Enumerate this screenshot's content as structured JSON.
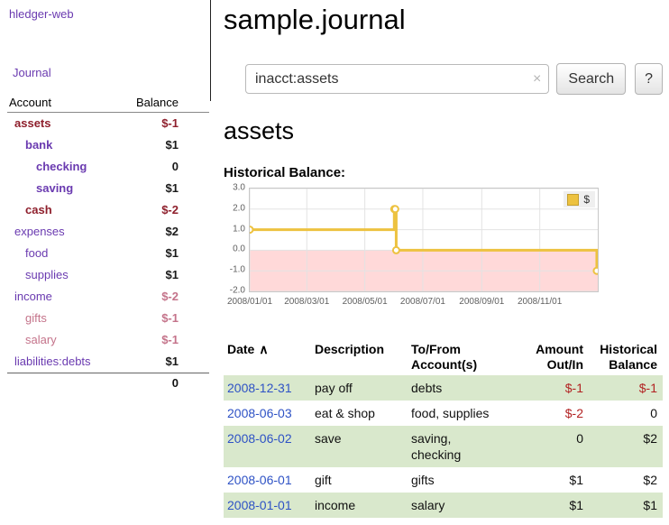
{
  "colors": {
    "link": "#6a3ab0",
    "negative": "#8e1f2c",
    "negative_dim": "#c4738a",
    "normal": "#1a1a1a",
    "table_negative": "#b22222",
    "date_link": "#2e52c5",
    "row_stripe": "#d9e8cc",
    "grid": "#e3e3e3",
    "series": "#edc240",
    "plot_border": "#c8c8c8",
    "negative_region": "#ffd9d9",
    "axis_label": "#5f5f5f"
  },
  "sidebar": {
    "brand": "hledger-web",
    "journal": "Journal",
    "accounts_table": {
      "header": {
        "account": "Account",
        "balance": "Balance"
      },
      "rows": [
        {
          "name": "assets",
          "depth": 0,
          "balance": "$-1",
          "bold": true,
          "name_color": "negative",
          "balance_color": "negative"
        },
        {
          "name": "bank",
          "depth": 1,
          "balance": "$1",
          "bold": true,
          "name_color": "link",
          "balance_color": "normal"
        },
        {
          "name": "checking",
          "depth": 2,
          "balance": "0",
          "bold": true,
          "name_color": "link",
          "balance_color": "normal"
        },
        {
          "name": "saving",
          "depth": 2,
          "balance": "$1",
          "bold": true,
          "name_color": "link",
          "balance_color": "normal"
        },
        {
          "name": "cash",
          "depth": 1,
          "balance": "$-2",
          "bold": true,
          "name_color": "negative",
          "balance_color": "negative"
        },
        {
          "name": "expenses",
          "depth": 0,
          "balance": "$2",
          "bold": false,
          "name_color": "link",
          "balance_color": "normal"
        },
        {
          "name": "food",
          "depth": 1,
          "balance": "$1",
          "bold": false,
          "name_color": "link",
          "balance_color": "normal"
        },
        {
          "name": "supplies",
          "depth": 1,
          "balance": "$1",
          "bold": false,
          "name_color": "link",
          "balance_color": "normal"
        },
        {
          "name": "income",
          "depth": 0,
          "balance": "$-2",
          "bold": false,
          "name_color": "link",
          "balance_color": "negative_dim"
        },
        {
          "name": "gifts",
          "depth": 1,
          "balance": "$-1",
          "bold": false,
          "name_color": "negative_dim",
          "balance_color": "negative_dim"
        },
        {
          "name": "salary",
          "depth": 1,
          "balance": "$-1",
          "bold": false,
          "name_color": "negative_dim",
          "balance_color": "negative_dim"
        },
        {
          "name": "liabilities:debts",
          "depth": 0,
          "balance": "$1",
          "bold": false,
          "name_color": "link",
          "balance_color": "normal"
        }
      ],
      "total": "0"
    }
  },
  "main": {
    "title": "sample.journal",
    "search": {
      "value": "inacct:assets",
      "clear": "×",
      "submit": "Search",
      "help": "?"
    },
    "account_heading": "assets",
    "chart_title": "Historical Balance:"
  },
  "chart_data": {
    "type": "line",
    "step": true,
    "title": "Historical Balance",
    "xlabel": "",
    "ylabel": "",
    "legend": {
      "label": "$",
      "position": "top-right"
    },
    "xrange": [
      "2008-01-01",
      "2009-01-01"
    ],
    "ylim": [
      -2,
      3
    ],
    "yticks": [
      "3.0",
      "2.0",
      "1.0",
      "0.0",
      "-1.0",
      "-2.0"
    ],
    "xticks": [
      "2008/01/01",
      "2008/03/01",
      "2008/05/01",
      "2008/07/01",
      "2008/09/01",
      "2008/11/01"
    ],
    "series": [
      {
        "name": "$",
        "color": "#edc240",
        "points": [
          [
            "2008-01-01",
            1
          ],
          [
            "2008-06-01",
            2
          ],
          [
            "2008-06-02",
            2
          ],
          [
            "2008-06-03",
            0
          ],
          [
            "2008-12-31",
            -1
          ]
        ]
      }
    ],
    "negative_region_below": 0,
    "grid": true
  },
  "register": {
    "sort_icon": "∧",
    "columns": [
      {
        "lines": [
          "Date"
        ],
        "sort": "asc",
        "align": "left"
      },
      {
        "lines": [
          "Description"
        ],
        "align": "left"
      },
      {
        "lines": [
          "To/From",
          "Account(s)"
        ],
        "align": "left"
      },
      {
        "lines": [
          "Amount",
          "Out/In"
        ],
        "align": "right"
      },
      {
        "lines": [
          "Historical",
          "Balance"
        ],
        "align": "right"
      }
    ],
    "rows": [
      {
        "date": "2008-12-31",
        "description": "pay off",
        "accounts": "debts",
        "amount": "$-1",
        "amount_negative": true,
        "balance": "$-1",
        "balance_negative": true
      },
      {
        "date": "2008-06-03",
        "description": "eat & shop",
        "accounts": "food, supplies",
        "amount": "$-2",
        "amount_negative": true,
        "balance": "0",
        "balance_negative": false
      },
      {
        "date": "2008-06-02",
        "description": "save",
        "accounts": "saving, checking",
        "amount": "0",
        "amount_negative": false,
        "balance": "$2",
        "balance_negative": false
      },
      {
        "date": "2008-06-01",
        "description": "gift",
        "accounts": "gifts",
        "amount": "$1",
        "amount_negative": false,
        "balance": "$2",
        "balance_negative": false
      },
      {
        "date": "2008-01-01",
        "description": "income",
        "accounts": "salary",
        "amount": "$1",
        "amount_negative": false,
        "balance": "$1",
        "balance_negative": false
      }
    ]
  }
}
